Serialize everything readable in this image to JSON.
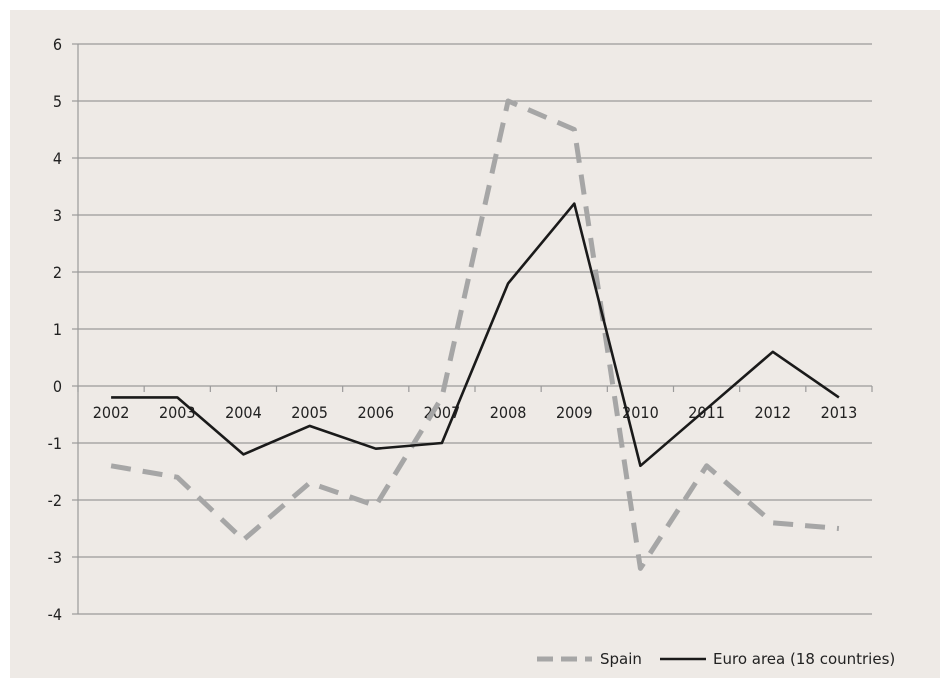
{
  "chart_data": {
    "type": "line",
    "title": "",
    "xlabel": "",
    "ylabel": "",
    "x": [
      "2002",
      "2003",
      "2004",
      "2005",
      "2006",
      "2007",
      "2008",
      "2009",
      "2010",
      "2011",
      "2012",
      "2013"
    ],
    "ylim": [
      -4,
      6
    ],
    "yticks": [
      -4,
      -3,
      -2,
      -1,
      0,
      1,
      2,
      3,
      4,
      5,
      6
    ],
    "grid": true,
    "legend_position": "bottom-right",
    "series": [
      {
        "name": "Spain",
        "style": "dashed",
        "color": "#a6a6a6",
        "values": [
          -1.4,
          -1.6,
          -2.7,
          -1.7,
          -2.1,
          -0.2,
          5.0,
          4.5,
          -3.2,
          -1.4,
          -2.4,
          -2.5
        ]
      },
      {
        "name": "Euro area (18 countries)",
        "style": "solid",
        "color": "#1a1a1a",
        "values": [
          -0.2,
          -0.2,
          -1.2,
          -0.7,
          -1.1,
          -1.0,
          1.8,
          3.2,
          -1.4,
          -0.4,
          0.6,
          -0.2
        ]
      }
    ]
  }
}
